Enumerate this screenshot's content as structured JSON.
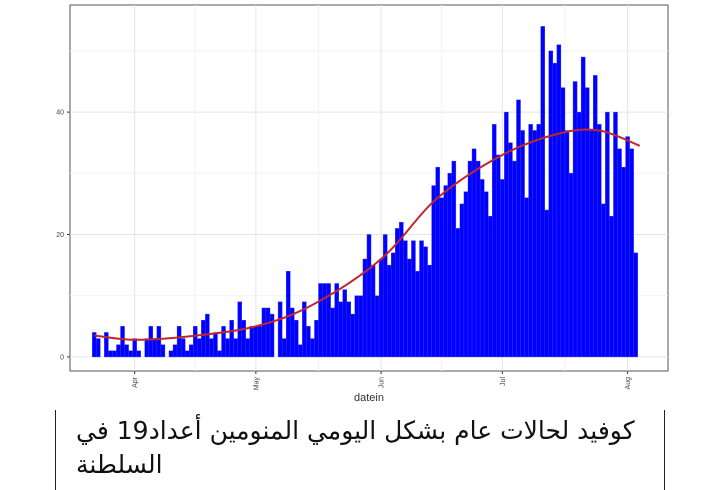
{
  "chart_data": {
    "type": "bar",
    "xlabel": "datein",
    "ylabel": "",
    "ylim": [
      -2.3,
      57.5
    ],
    "xlim": [
      "03-16",
      "08-11"
    ],
    "y_ticks": [
      0,
      20,
      40
    ],
    "x_ticks": [
      {
        "date": "04-01",
        "label": "Apr"
      },
      {
        "date": "05-01",
        "label": "May"
      },
      {
        "date": "06-01",
        "label": "Jun"
      },
      {
        "date": "07-01",
        "label": "Jul"
      },
      {
        "date": "08-01",
        "label": "Aug"
      }
    ],
    "grid": true,
    "bar_color": "#0000FF",
    "smooth_color": "#C0262D",
    "start_date": "03-22",
    "values": [
      4,
      3,
      0,
      4,
      1,
      1,
      2,
      5,
      2,
      1,
      3,
      1,
      0,
      3,
      5,
      3,
      5,
      2,
      0,
      1,
      2,
      5,
      3,
      1,
      2,
      5,
      3,
      6,
      7,
      3,
      4,
      1,
      5,
      3,
      6,
      3,
      9,
      6,
      3,
      5,
      5,
      5,
      8,
      8,
      7,
      0,
      9,
      3,
      14,
      8,
      6,
      2,
      9,
      5,
      3,
      6,
      12,
      12,
      12,
      8,
      12,
      9,
      11,
      9,
      7,
      10,
      10,
      16,
      20,
      15,
      10,
      16,
      20,
      15,
      17,
      21,
      22,
      19,
      16,
      19,
      14,
      19,
      18,
      15,
      28,
      31,
      26,
      28,
      30,
      32,
      21,
      25,
      27,
      32,
      34,
      32,
      29,
      27,
      23,
      38,
      33,
      29,
      40,
      35,
      32,
      42,
      37,
      26,
      38,
      37,
      38,
      54,
      24,
      50,
      48,
      51,
      44,
      37,
      30,
      45,
      40,
      49,
      44,
      37,
      46,
      38,
      25,
      40,
      23,
      40,
      34,
      31,
      36,
      34,
      17
    ],
    "smooth": [
      {
        "date": "03-22",
        "y": 3.5
      },
      {
        "date": "04-01",
        "y": 2.8
      },
      {
        "date": "04-15",
        "y": 3.4
      },
      {
        "date": "05-01",
        "y": 5
      },
      {
        "date": "05-15",
        "y": 8.5
      },
      {
        "date": "06-01",
        "y": 16
      },
      {
        "date": "06-15",
        "y": 26
      },
      {
        "date": "07-01",
        "y": 33
      },
      {
        "date": "07-15",
        "y": 36.5
      },
      {
        "date": "07-25",
        "y": 37
      },
      {
        "date": "08-04",
        "y": 34.5
      }
    ]
  },
  "caption": {
    "text": "كوفيد لحالات عام بشكل اليومي المنومين أعداد19 في السلطنة"
  }
}
